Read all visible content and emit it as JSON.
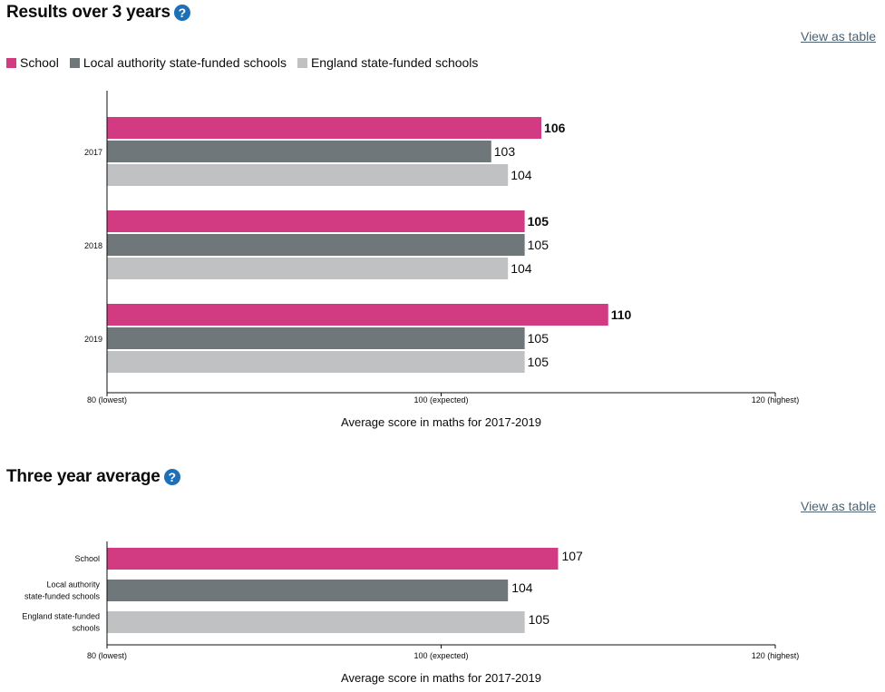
{
  "colors": {
    "school": "#d23a82",
    "local": "#6f777b",
    "england": "#bfc1c3",
    "axis": "#0b0c0c",
    "link": "#4c6272"
  },
  "section1": {
    "title": "Results over 3 years",
    "help": "?",
    "view_table": "View as table"
  },
  "section2": {
    "title": "Three year average",
    "help": "?",
    "view_table": "View as table"
  },
  "legend": [
    {
      "label": "School",
      "color": "#d23a82"
    },
    {
      "label": "Local authority state-funded schools",
      "color": "#6f777b"
    },
    {
      "label": "England state-funded schools",
      "color": "#bfc1c3"
    }
  ],
  "chart_data": [
    {
      "type": "bar",
      "orientation": "horizontal",
      "categories": [
        "2017",
        "2018",
        "2019"
      ],
      "series": [
        {
          "name": "School",
          "values": [
            106,
            105,
            110
          ]
        },
        {
          "name": "Local authority state-funded schools",
          "values": [
            103,
            105,
            105
          ]
        },
        {
          "name": "England state-funded schools",
          "values": [
            104,
            104,
            105
          ]
        }
      ],
      "xlim": [
        80,
        120
      ],
      "xticks": [
        "80 (lowest)",
        "100 (expected)",
        "120 (highest)"
      ],
      "xlabel": "Average score in maths for 2017-2019",
      "legend": "top-left",
      "grid": false
    },
    {
      "type": "bar",
      "orientation": "horizontal",
      "categories": [
        [
          "School"
        ],
        [
          "Local authority",
          "state-funded schools"
        ],
        [
          "England state-funded",
          "schools"
        ]
      ],
      "values": [
        107,
        104,
        105
      ],
      "xlim": [
        80,
        120
      ],
      "xticks": [
        "80 (lowest)",
        "100 (expected)",
        "120 (highest)"
      ],
      "xlabel": "Average score in maths for 2017-2019",
      "grid": false
    }
  ]
}
